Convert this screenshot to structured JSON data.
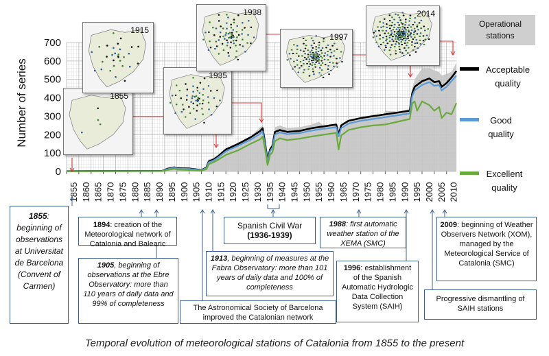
{
  "chart_data": {
    "type": "line",
    "ylabel": "Number of series",
    "ylim": [
      0,
      700
    ],
    "yticks": [
      0,
      100,
      200,
      300,
      400,
      500,
      600,
      700
    ],
    "xlim": [
      1855,
      2014
    ],
    "xticks": [
      "1855",
      "1860",
      "1865",
      "1870",
      "1875",
      "1880",
      "1885",
      "1890",
      "1895",
      "1900",
      "1905",
      "1910",
      "1915",
      "1920",
      "1925",
      "1930",
      "1935",
      "1940",
      "1945",
      "1950",
      "1955",
      "1960",
      "1965",
      "1970",
      "1975",
      "1980",
      "1985",
      "1990",
      "1995",
      "2000",
      "2005",
      "2010"
    ],
    "grid": true,
    "series": [
      {
        "name": "Operational stations",
        "style": "area",
        "color": "#c4c4c4",
        "x": [
          1855,
          1894,
          1896,
          1899,
          1900,
          1905,
          1910,
          1912,
          1913,
          1915,
          1917,
          1920,
          1925,
          1930,
          1934,
          1935,
          1936,
          1937,
          1938,
          1939,
          1940,
          1942,
          1945,
          1950,
          1955,
          1958,
          1960,
          1963,
          1965,
          1966,
          1967,
          1970,
          1975,
          1980,
          1984,
          1985,
          1990,
          1995,
          1996,
          1997,
          1998,
          2000,
          2003,
          2005,
          2007,
          2008,
          2010,
          2012,
          2014
        ],
        "values": [
          5,
          6,
          15,
          30,
          20,
          22,
          12,
          28,
          65,
          75,
          90,
          120,
          150,
          190,
          240,
          250,
          160,
          80,
          120,
          140,
          240,
          250,
          235,
          240,
          255,
          270,
          245,
          260,
          250,
          180,
          220,
          280,
          290,
          310,
          300,
          330,
          325,
          340,
          450,
          500,
          520,
          560,
          560,
          550,
          540,
          520,
          530,
          540,
          590
        ]
      },
      {
        "name": "Acceptable quality",
        "color": "#000000",
        "x": [
          1855,
          1894,
          1896,
          1899,
          1900,
          1905,
          1910,
          1912,
          1913,
          1915,
          1917,
          1920,
          1925,
          1930,
          1934,
          1935,
          1936,
          1937,
          1938,
          1939,
          1940,
          1942,
          1945,
          1950,
          1955,
          1960,
          1965,
          1966,
          1967,
          1970,
          1975,
          1980,
          1985,
          1990,
          1995,
          1996,
          1997,
          1998,
          2000,
          2003,
          2005,
          2007,
          2008,
          2010,
          2012,
          2014
        ],
        "values": [
          2,
          3,
          14,
          22,
          18,
          16,
          8,
          20,
          55,
          65,
          85,
          120,
          150,
          185,
          220,
          235,
          150,
          60,
          120,
          140,
          215,
          225,
          215,
          220,
          235,
          245,
          255,
          200,
          250,
          275,
          290,
          300,
          310,
          320,
          330,
          425,
          460,
          470,
          490,
          505,
          485,
          490,
          460,
          480,
          510,
          545
        ]
      },
      {
        "name": "Good quality",
        "color": "#5b9bd5",
        "x": [
          1855,
          1894,
          1896,
          1899,
          1900,
          1905,
          1910,
          1912,
          1913,
          1915,
          1917,
          1920,
          1925,
          1930,
          1934,
          1935,
          1936,
          1937,
          1938,
          1939,
          1940,
          1942,
          1945,
          1950,
          1955,
          1960,
          1965,
          1966,
          1967,
          1970,
          1975,
          1980,
          1985,
          1990,
          1995,
          1996,
          1997,
          1998,
          2000,
          2003,
          2005,
          2007,
          2008,
          2010,
          2012,
          2014
        ],
        "values": [
          2,
          3,
          12,
          20,
          16,
          14,
          7,
          18,
          50,
          60,
          78,
          110,
          140,
          172,
          205,
          218,
          140,
          52,
          110,
          130,
          200,
          212,
          202,
          208,
          222,
          232,
          240,
          190,
          235,
          260,
          275,
          285,
          295,
          305,
          315,
          410,
          440,
          450,
          470,
          485,
          465,
          470,
          440,
          460,
          490,
          520
        ]
      },
      {
        "name": "Excellent quality",
        "color": "#6aaa3a",
        "x": [
          1855,
          1894,
          1896,
          1899,
          1900,
          1905,
          1910,
          1912,
          1913,
          1915,
          1917,
          1920,
          1925,
          1930,
          1934,
          1935,
          1936,
          1937,
          1938,
          1939,
          1940,
          1942,
          1945,
          1950,
          1955,
          1960,
          1965,
          1966,
          1967,
          1970,
          1975,
          1980,
          1985,
          1990,
          1995,
          1996,
          1997,
          1998,
          2000,
          2003,
          2005,
          2007,
          2008,
          2010,
          2012,
          2014
        ],
        "values": [
          1,
          2,
          8,
          15,
          10,
          8,
          5,
          12,
          40,
          50,
          65,
          90,
          115,
          150,
          175,
          190,
          120,
          35,
          90,
          105,
          165,
          180,
          170,
          178,
          190,
          200,
          210,
          120,
          195,
          225,
          240,
          250,
          255,
          270,
          285,
          370,
          380,
          330,
          380,
          360,
          330,
          350,
          290,
          320,
          310,
          370
        ]
      }
    ]
  },
  "legend": {
    "operational": "Operational stations",
    "acceptable": "Acceptable quality",
    "good": "Good quality",
    "excellent": "Excellent quality"
  },
  "maps": [
    "1855",
    "1915",
    "1935",
    "1938",
    "1997",
    "2014"
  ],
  "notes": {
    "n1855": {
      "year": "1855",
      "text": ": beginning of observations at Universitat de Barcelona (Convent of Carmen)"
    },
    "n1894": {
      "year": "1894",
      "text": ": creation of the Meteorological network of Catalonia and Balearic"
    },
    "n1905": {
      "year": "1905",
      "text": ", beginning of observations at the Ebre Observatory: more than 110 years of daily data and 99% of completeness"
    },
    "nastro": {
      "text": "The Astronomical Society of Barcelona improved the Catalonian network"
    },
    "n1913": {
      "year": "1913",
      "text": ", beginning of measures at the Fabra Observatory: more than 101 years of daily data and 100% of completeness"
    },
    "ncivil": {
      "text": "Spanish Civil War",
      "years": "(1936-1939)"
    },
    "n1988": {
      "year": "1988",
      "text": ": first automatic weather station of the XEMA (SMC)"
    },
    "n1996": {
      "year": "1996",
      "text": ": establishment of the Spanish Automatic Hydrologic Data Collection System (SAIH)"
    },
    "n2009": {
      "year": "2009",
      "text": ": beginning of Weather Observers Network (XOM), managed by the Meteorological Service of Catalonia (SMC)"
    },
    "nsaih": {
      "text": "Progressive dismantling of SAIH stations"
    }
  },
  "caption": "Temporal evolution of meteorological stations of Catalonia from 1855 to the present"
}
